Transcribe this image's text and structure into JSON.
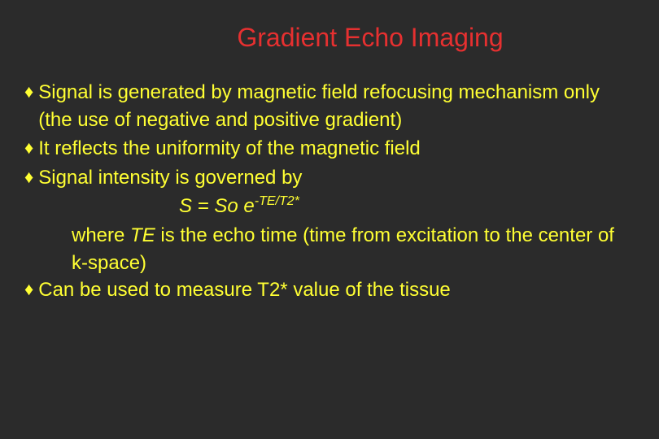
{
  "slide": {
    "title": "Gradient Echo Imaging",
    "background_color": "#2b2b2b",
    "title_color": "#e63030",
    "text_color": "#ffff33",
    "bullet_char": "♦",
    "bullets": [
      {
        "text": "Signal is generated by magnetic field refocusing mechanism only (the use of negative and positive gradient)"
      },
      {
        "text": "It reflects the uniformity of the magnetic field"
      },
      {
        "text": "Signal intensity is governed by"
      },
      {
        "text": "Can be used to measure T2* value of the tissue"
      }
    ],
    "formula": {
      "prefix": "S = So e",
      "exponent": "-TE/T2*"
    },
    "where_prefix": "where ",
    "where_italic": "TE",
    "where_rest": " is the echo time (time from excitation to the center of k-space)"
  }
}
